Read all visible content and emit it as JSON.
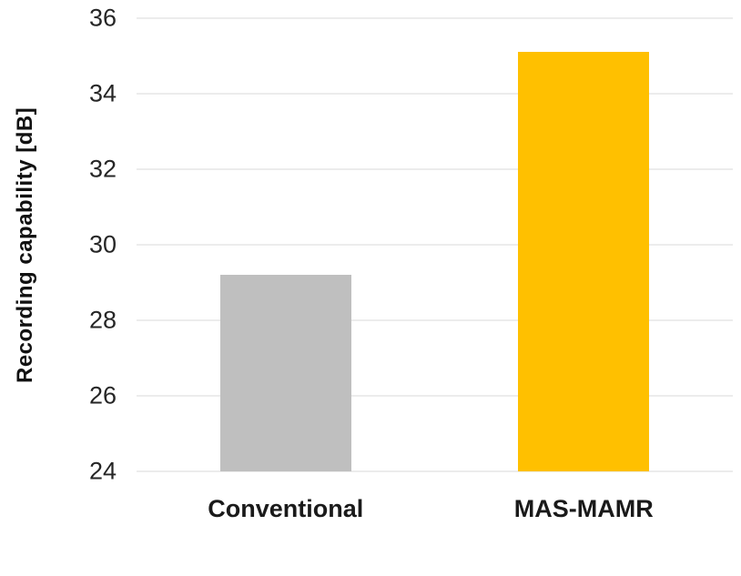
{
  "chart_data": {
    "type": "bar",
    "categories": [
      "Conventional",
      "MAS-MAMR"
    ],
    "values": [
      29.2,
      35.1
    ],
    "colors": [
      "#bfbfbf",
      "#ffc000"
    ],
    "title": "",
    "xlabel": "",
    "ylabel": "Recording capability [dB]",
    "ylim": [
      24,
      36
    ],
    "yticks": [
      24,
      26,
      28,
      30,
      32,
      34,
      36
    ],
    "grid": true,
    "legend": "none",
    "background_color": "#ffffff",
    "gridline_color": "#d9d9d9"
  }
}
